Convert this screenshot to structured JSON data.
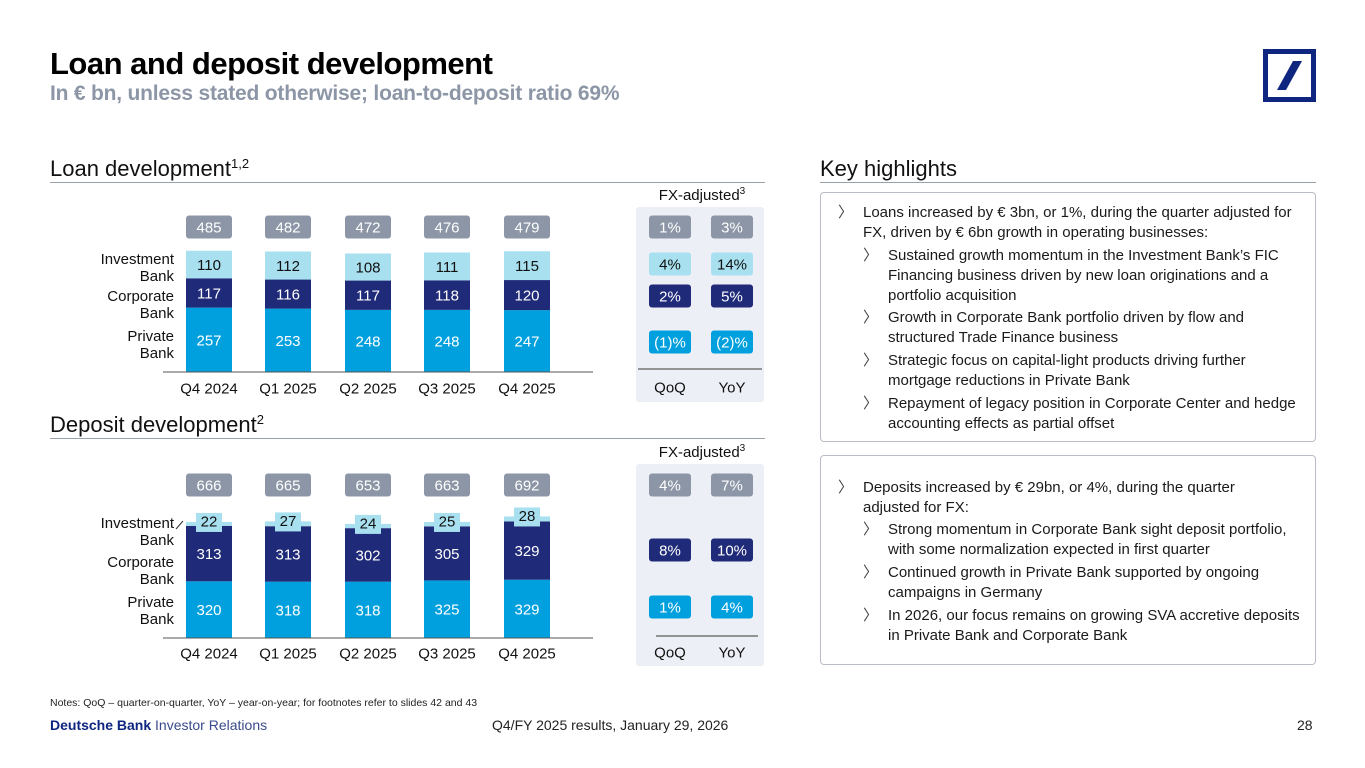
{
  "header": {
    "title": "Loan and deposit development",
    "subtitle": "In € bn, unless stated otherwise; loan-to-deposit ratio 69%",
    "logo_icon": "deutsche-bank-slash-logo"
  },
  "colors": {
    "private_bank": "#00a0de",
    "corporate_bank": "#1f2a78",
    "investment_bank": "#a8e0f0",
    "total_badge": "#8c96a6",
    "fx_panel": "#eceff6",
    "brand": "#0e2680"
  },
  "loans": {
    "section_title": "Loan development",
    "section_sup": "1,2",
    "fx_label": "FX-adjusted",
    "fx_sup": "3",
    "segment_labels": {
      "investment": "Investment\nBank",
      "corporate": "Corporate\nBank",
      "private": "Private\nBank"
    },
    "fx_columns": [
      "QoQ",
      "YoY"
    ],
    "fx": {
      "total": [
        "1%",
        "3%"
      ],
      "investment": [
        "4%",
        "14%"
      ],
      "corporate": [
        "2%",
        "5%"
      ],
      "private": [
        "(1)%",
        "(2)%"
      ]
    }
  },
  "deposits": {
    "section_title": "Deposit development",
    "section_sup": "2",
    "fx_label": "FX-adjusted",
    "fx_sup": "3",
    "segment_labels": {
      "investment": "Investment\nBank",
      "corporate": "Corporate\nBank",
      "private": "Private\nBank"
    },
    "fx_columns": [
      "QoQ",
      "YoY"
    ],
    "fx": {
      "total": [
        "4%",
        "7%"
      ],
      "corporate": [
        "8%",
        "10%"
      ],
      "private": [
        "1%",
        "4%"
      ]
    }
  },
  "chart_data": [
    {
      "type": "bar",
      "stacked": true,
      "title": "Loan development",
      "categories": [
        "Q4 2024",
        "Q1 2025",
        "Q2 2025",
        "Q3 2025",
        "Q4 2025"
      ],
      "series": [
        {
          "name": "Private Bank",
          "values": [
            257,
            253,
            248,
            248,
            247
          ]
        },
        {
          "name": "Corporate Bank",
          "values": [
            117,
            116,
            117,
            118,
            120
          ]
        },
        {
          "name": "Investment Bank",
          "values": [
            110,
            112,
            108,
            111,
            115
          ]
        }
      ],
      "totals": [
        485,
        482,
        472,
        476,
        479
      ],
      "xlabel": "",
      "ylabel": "€ bn",
      "grid": false
    },
    {
      "type": "bar",
      "stacked": true,
      "title": "Deposit development",
      "categories": [
        "Q4 2024",
        "Q1 2025",
        "Q2 2025",
        "Q3 2025",
        "Q4 2025"
      ],
      "series": [
        {
          "name": "Private Bank",
          "values": [
            320,
            318,
            318,
            325,
            329
          ]
        },
        {
          "name": "Corporate Bank",
          "values": [
            313,
            313,
            302,
            305,
            329
          ]
        },
        {
          "name": "Investment Bank",
          "values": [
            22,
            27,
            24,
            25,
            28
          ]
        }
      ],
      "totals": [
        666,
        665,
        653,
        663,
        692
      ],
      "xlabel": "",
      "ylabel": "€ bn",
      "grid": false
    }
  ],
  "highlights": {
    "title": "Key highlights",
    "loans_box": {
      "main": "Loans increased by € 3bn, or 1%, during the quarter adjusted for FX, driven by € 6bn growth in operating businesses:",
      "sub": [
        "Sustained growth momentum in the Investment Bank’s FIC Financing business driven by new loan originations and a portfolio acquisition",
        "Growth in Corporate Bank portfolio driven by flow and structured Trade Finance business",
        "Strategic focus on capital-light products driving further mortgage reductions in Private Bank",
        "Repayment of legacy position in Corporate Center and hedge accounting effects as partial offset"
      ]
    },
    "deposits_box": {
      "main": "Deposits increased by € 29bn, or 4%, during the quarter adjusted for FX:",
      "sub": [
        "Strong momentum in Corporate Bank sight deposit portfolio, with some normalization expected in first quarter",
        "Continued growth in Private Bank supported by ongoing campaigns in Germany",
        "In 2026, our focus remains on growing SVA accretive deposits in Private Bank and Corporate Bank"
      ]
    },
    "bullet": "〉"
  },
  "footer": {
    "notes": "Notes: QoQ – quarter-on-quarter, YoY – year-on-year; for footnotes refer to slides 42 and 43",
    "brand_bold": "Deutsche Bank",
    "brand_rest": " Investor Relations",
    "center": "Q4/FY 2025 results, January 29, 2026",
    "page": "28"
  }
}
